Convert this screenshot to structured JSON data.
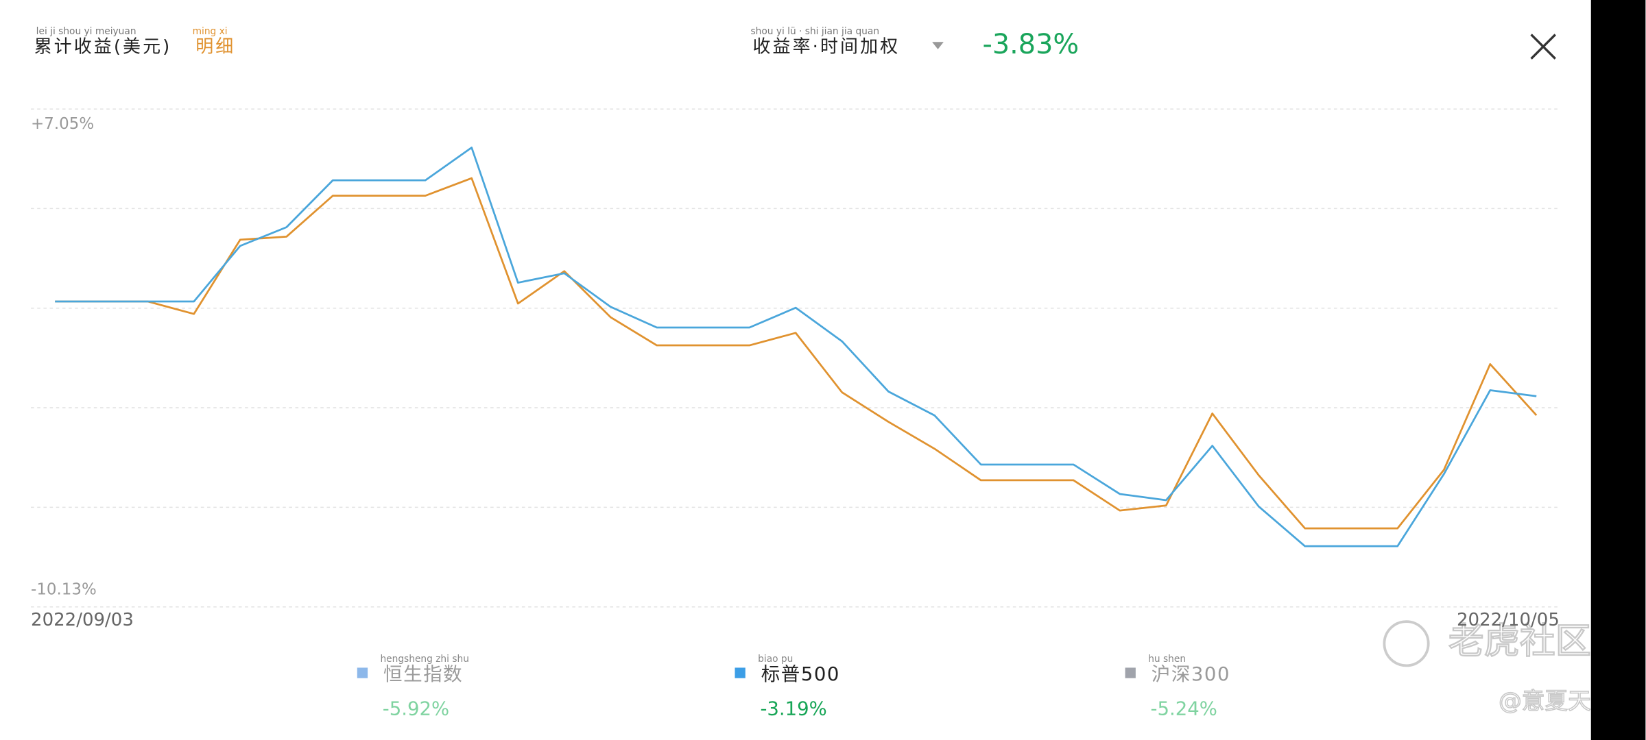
{
  "header": {
    "title_pinyin": "lei ji shou yi meiyuan",
    "title": "累计收益(美元)",
    "detail_pinyin": "ming xi",
    "detail": "明细",
    "metric_pinyin": "shou yi lü · shi jian jia quan",
    "metric": "收益率·时间加权",
    "metric_value": "-3.83%"
  },
  "chart_data": {
    "type": "line",
    "categories": [
      "2022/09/03",
      null,
      null,
      null,
      null,
      null,
      null,
      null,
      null,
      null,
      null,
      null,
      null,
      null,
      null,
      null,
      null,
      null,
      null,
      null,
      null,
      null,
      null,
      null,
      null,
      null,
      null,
      null,
      null,
      null,
      null,
      null,
      "2022/10/05"
    ],
    "series": [
      {
        "color": "#e0922f",
        "values": [
          0,
          0,
          0,
          -0.42,
          2.08,
          2.18,
          3.56,
          3.56,
          3.56,
          4.15,
          -0.07,
          1.02,
          -0.53,
          -1.48,
          -1.48,
          -1.48,
          -1.06,
          -3.06,
          -4.05,
          -4.96,
          -6.02,
          -6.02,
          -6.02,
          -7.04,
          -6.87,
          -3.77,
          -5.85,
          -7.64,
          -7.64,
          -7.64,
          -5.67,
          -2.11,
          -3.83
        ]
      },
      {
        "color": "#4aa6db",
        "values": [
          0,
          0,
          0,
          0,
          1.87,
          2.5,
          4.08,
          4.08,
          4.08,
          5.18,
          0.63,
          0.95,
          -0.18,
          -0.88,
          -0.88,
          -0.88,
          -0.21,
          -1.34,
          -3.03,
          -3.84,
          -5.49,
          -5.49,
          -5.49,
          -6.48,
          -6.69,
          -4.86,
          -6.9,
          -8.24,
          -8.24,
          -8.24,
          -5.81,
          -2.99,
          -3.19
        ]
      }
    ],
    "ylim": [
      -10.13,
      7.05
    ],
    "yticks": [
      {
        "value": 7.05,
        "label": "+7.05%"
      },
      {
        "value": -10.13,
        "label": "-10.13%"
      }
    ]
  },
  "comparisons": [
    {
      "pinyin": "hengsheng zhi shu",
      "label": "恒生指数",
      "change": "-5.92%",
      "color": "#8db8ea",
      "active": false
    },
    {
      "pinyin": "biao pu",
      "label": "标普500",
      "change": "-3.19%",
      "color": "#3c9ee6",
      "active": true
    },
    {
      "pinyin": "hu shen",
      "label": "沪深300",
      "change": "-5.24%",
      "color": "#a0a3ab",
      "active": false
    }
  ],
  "watermark": {
    "brand": "老虎社区",
    "author": "@意夏天"
  }
}
